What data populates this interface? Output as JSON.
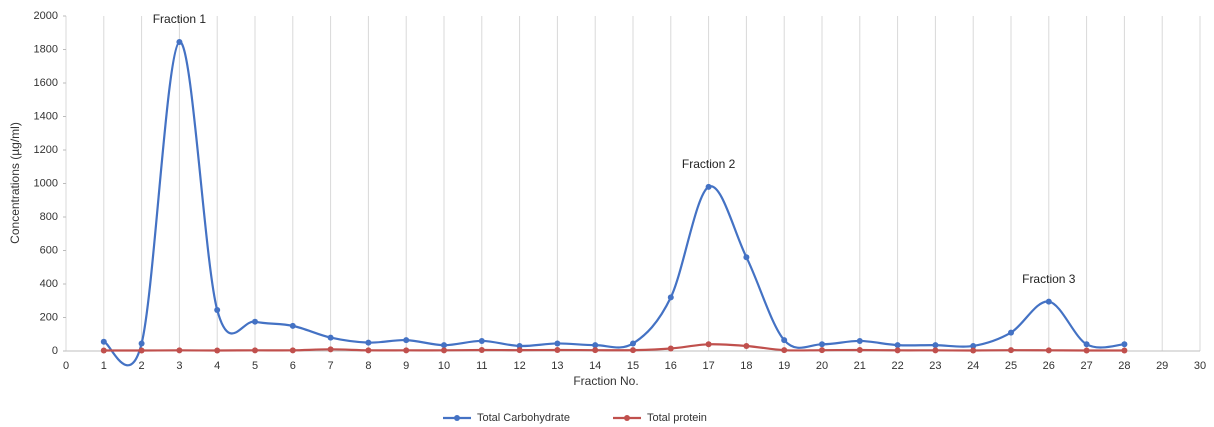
{
  "chart_data": {
    "type": "line",
    "x_label": "Fraction No.",
    "y_label": "Concentrations (µg/ml)",
    "x": [
      1,
      2,
      3,
      4,
      5,
      6,
      7,
      8,
      9,
      10,
      11,
      12,
      13,
      14,
      15,
      16,
      17,
      18,
      19,
      20,
      21,
      22,
      23,
      24,
      25,
      26,
      27,
      28
    ],
    "series": [
      {
        "name": "Total Carbohydrate",
        "color": "#4472c4",
        "values": [
          55,
          45,
          1845,
          245,
          175,
          150,
          80,
          50,
          65,
          35,
          60,
          30,
          45,
          35,
          45,
          320,
          980,
          560,
          65,
          40,
          60,
          35,
          35,
          30,
          110,
          295,
          40,
          40
        ]
      },
      {
        "name": "Total protein",
        "color": "#c0504d",
        "values": [
          3,
          3,
          4,
          3,
          4,
          4,
          10,
          4,
          4,
          4,
          6,
          5,
          6,
          5,
          5,
          15,
          40,
          30,
          5,
          5,
          6,
          4,
          4,
          3,
          5,
          4,
          3,
          3
        ]
      }
    ],
    "annotations": [
      {
        "text": "Fraction 1",
        "x": 3
      },
      {
        "text": "Fraction 2",
        "x": 17
      },
      {
        "text": "Fraction 3",
        "x": 26
      }
    ],
    "xlim": [
      0,
      30
    ],
    "xticks": [
      0,
      1,
      2,
      3,
      4,
      5,
      6,
      7,
      8,
      9,
      10,
      11,
      12,
      13,
      14,
      15,
      16,
      17,
      18,
      19,
      20,
      21,
      22,
      23,
      24,
      25,
      26,
      27,
      28,
      29,
      30
    ],
    "ylim": [
      0,
      2000
    ],
    "yticks": [
      0,
      200,
      400,
      600,
      800,
      1000,
      1200,
      1400,
      1600,
      1800,
      2000
    ],
    "grid": true,
    "smooth": true,
    "legend": "bottom"
  }
}
